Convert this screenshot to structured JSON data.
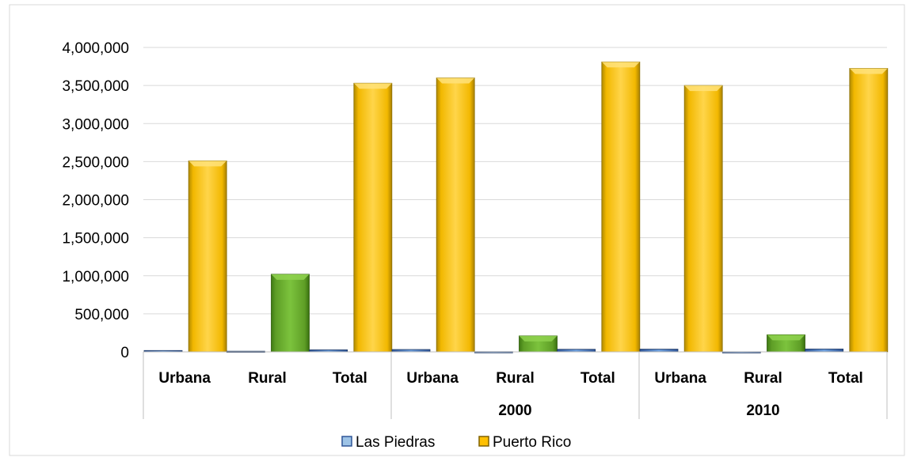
{
  "chart_data": {
    "type": "bar",
    "title": "",
    "xlabel": "",
    "ylabel": "",
    "ylim": [
      0,
      4000000
    ],
    "yticks": [
      "0",
      "500,000",
      "1,000,000",
      "1,500,000",
      "2,000,000",
      "2,500,000",
      "3,000,000",
      "3,500,000",
      "4,000,000"
    ],
    "grid": true,
    "legend_position": "bottom",
    "groups": [
      {
        "label": "",
        "categories": [
          "Urbana",
          "Rural",
          "Total"
        ]
      },
      {
        "label": "2000",
        "categories": [
          "Urbana",
          "Rural",
          "Total"
        ]
      },
      {
        "label": "2010",
        "categories": [
          "Urbana",
          "Rural",
          "Total"
        ]
      }
    ],
    "categories": [
      "Urbana",
      "Rural",
      "Total",
      "Urbana",
      "Rural",
      "Total",
      "Urbana",
      "Rural",
      "Total"
    ],
    "series": [
      {
        "name": "Las Piedras",
        "color": "#9DC3E6",
        "values": [
          18000,
          9000,
          27000,
          31000,
          3000,
          34000,
          36000,
          2000,
          38000
        ]
      },
      {
        "name": "Puerto Rico",
        "color": "#FFC000",
        "values": [
          2510000,
          1020000,
          3530000,
          3600000,
          210000,
          3810000,
          3500000,
          225000,
          3725000
        ]
      }
    ],
    "rural_bar_color": "#6AAE2E"
  }
}
